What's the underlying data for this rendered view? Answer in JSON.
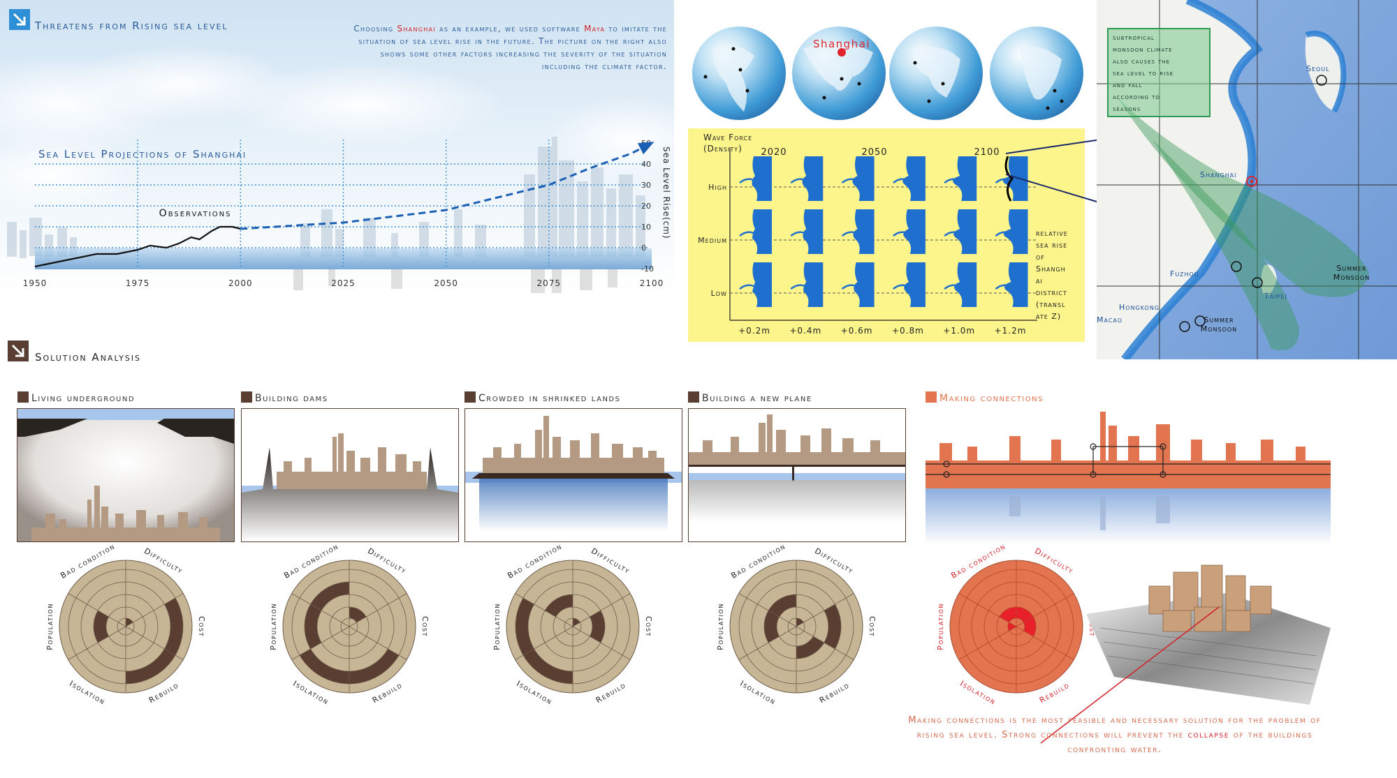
{
  "top_section": {
    "title": "Threatens from Rising sea level",
    "intro_parts": [
      {
        "t": "Choosing ",
        "hl": false
      },
      {
        "t": "Shanghai",
        "hl": true
      },
      {
        "t": " as an example, we used software ",
        "hl": false
      },
      {
        "t": "Maya",
        "hl": true
      },
      {
        "t": " to imitate the situation of sea level rise in the future. The picture on the right also shows some other factors increasing the severity of the situation including the climate factor.",
        "hl": false
      }
    ]
  },
  "chart_data": {
    "type": "line",
    "title": "Sea Level Projections of Shanghai",
    "ylabel": "Sea Level Rise(cm)",
    "annotation": "Observations",
    "x_ticks": [
      "1950",
      "1975",
      "2000",
      "2025",
      "2050",
      "2075",
      "2100"
    ],
    "y_ticks": [
      "50",
      "40",
      "30",
      "20",
      "10",
      "0",
      "-10"
    ],
    "xlim": [
      1950,
      2100
    ],
    "ylim": [
      -10,
      50
    ],
    "series": [
      {
        "style": "solid",
        "x": [
          1950,
          1955,
          1960,
          1965,
          1970,
          1975,
          1978,
          1982,
          1985,
          1988,
          1990,
          1993,
          1995,
          1998,
          2000
        ],
        "y": [
          -9,
          -7,
          -5,
          -3,
          -3,
          -1,
          1,
          0,
          2,
          5,
          4,
          8,
          10,
          10,
          9
        ]
      },
      {
        "style": "dashed",
        "x": [
          2000,
          2025,
          2050,
          2075,
          2085,
          2095,
          2100
        ],
        "y": [
          9,
          12,
          18,
          30,
          38,
          45,
          50
        ]
      }
    ],
    "grid": true
  },
  "globes": {
    "highlight_label": "Shanghai",
    "items": [
      "americas",
      "asia",
      "africa",
      "atlantic"
    ]
  },
  "wave_chart": {
    "title_line1": "Wave Force",
    "title_line2": "(Density)",
    "years": [
      "2020",
      "2050",
      "2100"
    ],
    "rows": [
      "High",
      "Medium",
      "Low"
    ],
    "x_labels": [
      "+0.2m",
      "+0.4m",
      "+0.6m",
      "+0.8m",
      "+1.0m",
      "+1.2m"
    ],
    "side_note": [
      "relative",
      "sea rise",
      "of",
      "Shangh",
      "ai",
      "district",
      "(transl",
      "ate Z)"
    ]
  },
  "map": {
    "note": [
      "subtropical",
      "monsoon climate",
      "also causes the",
      "sea level to rise",
      "and fall",
      "according to",
      "seasons"
    ],
    "labels": {
      "seoul": "Seoul",
      "shanghai": "Shanghai",
      "fuzhou": "Fuzhou",
      "taipei": "Taipei",
      "hongkong": "Hongkong",
      "macao": "Macao",
      "summer_monsoon_1a": "Summer",
      "summer_monsoon_1b": "Monsoon",
      "summer_monsoon_2a": "Summer",
      "summer_monsoon_2b": "Monsoon"
    }
  },
  "solution_section": {
    "title": "Solution Analysis",
    "solutions": [
      {
        "title": "Living underground"
      },
      {
        "title": "Building dams"
      },
      {
        "title": "Crowded in shrinked lands"
      },
      {
        "title": "Building a new plane"
      },
      {
        "title": "Making connections"
      }
    ],
    "radar_labels": [
      "Difficulty",
      "Cost",
      "Rebuild",
      "Isolation",
      "Population",
      "Bad condition"
    ],
    "conclusion_parts": [
      {
        "t": "Making connections is the most feasible and necessary solution for the problem of rising sea level. Strong connections will prevent the ",
        "hl": false
      },
      {
        "t": "collapse",
        "hl": true
      },
      {
        "t": " of the buildings confronting water.",
        "hl": false
      }
    ]
  },
  "colors": {
    "brown": "#5a3e32",
    "tan": "#c7b695",
    "orange": "#e2754f",
    "red": "#d21f26",
    "blue": "#1a5fb4",
    "yellow": "#fcf58c",
    "green": "#2d9a55"
  }
}
